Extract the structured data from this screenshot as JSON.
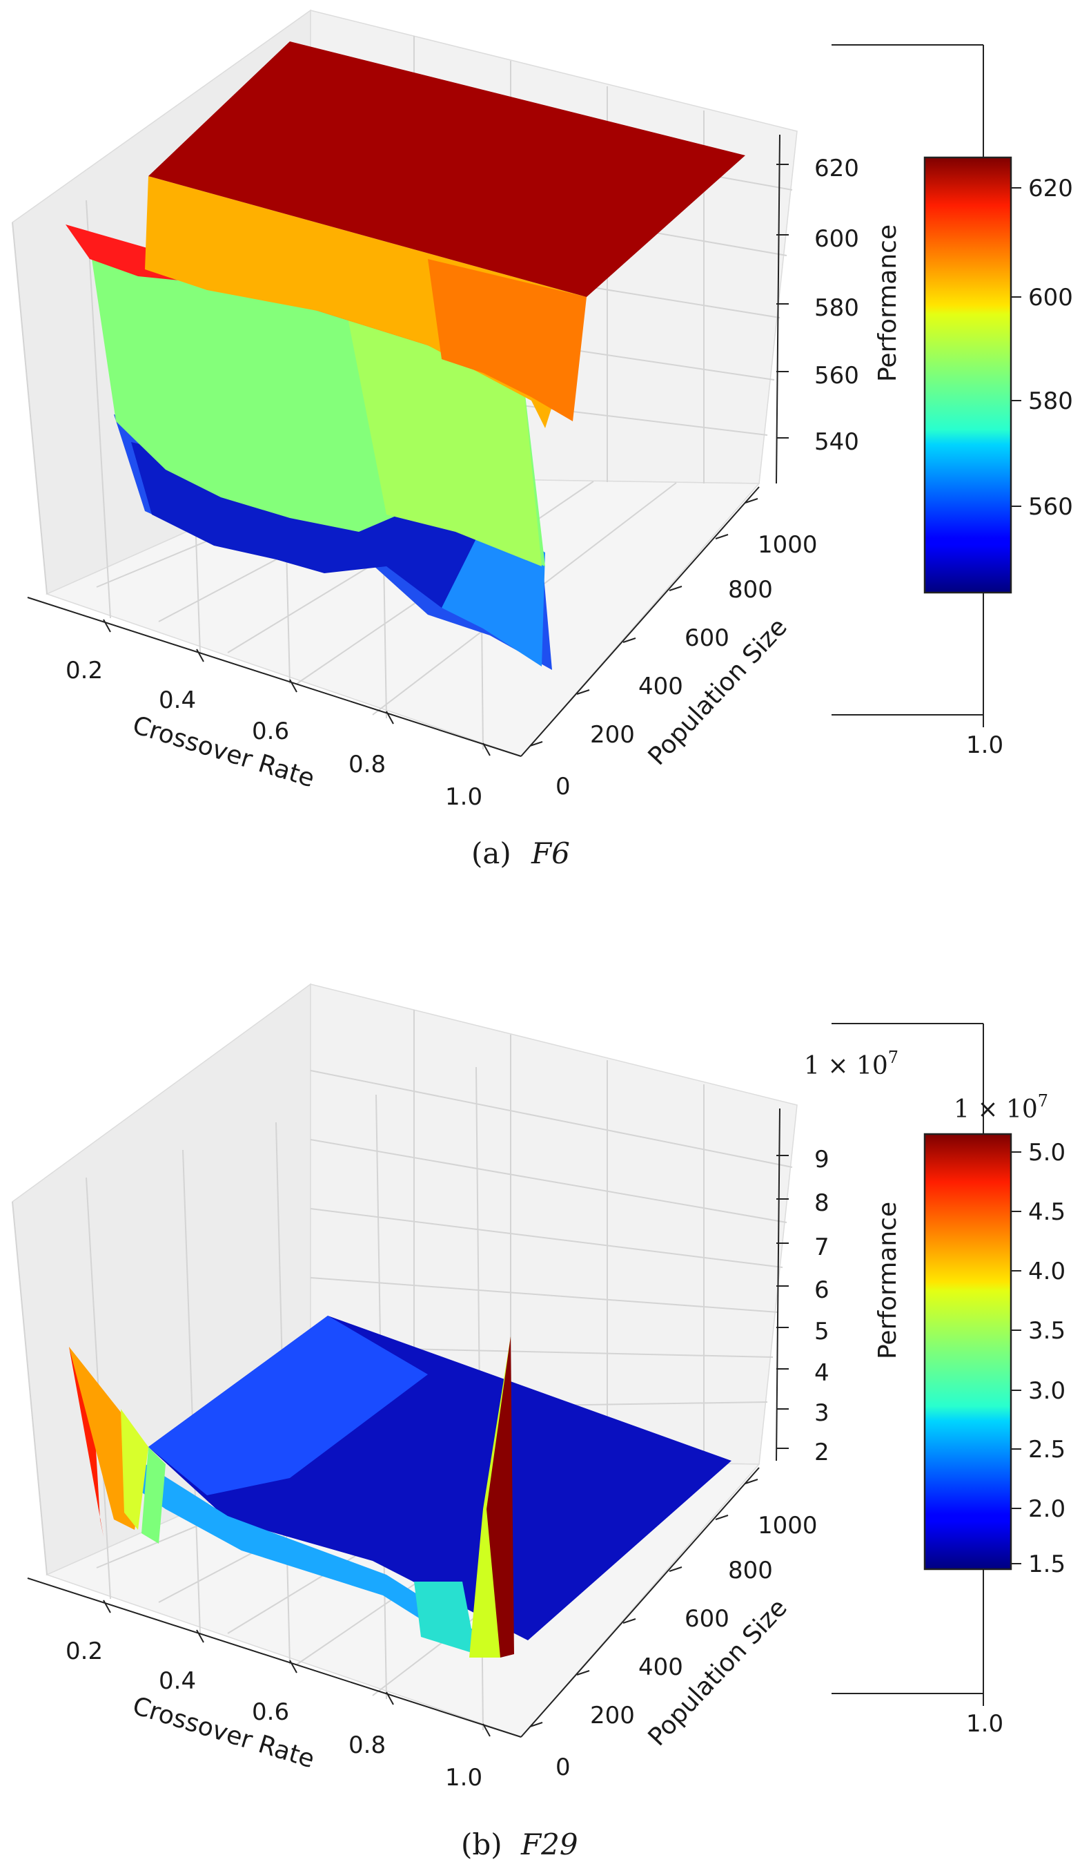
{
  "chart_data": [
    {
      "type": "surface3d",
      "caption_label": "(a)",
      "caption_function": "F6",
      "xlabel": "Crossover Rate",
      "ylabel": "Population Size",
      "zlabel": "Performance",
      "x_ticks": [
        "0.2",
        "0.4",
        "0.6",
        "0.8",
        "1.0"
      ],
      "y_ticks": [
        "0",
        "200",
        "400",
        "600",
        "800",
        "1000"
      ],
      "z_ticks": [
        "540",
        "560",
        "580",
        "600",
        "620"
      ],
      "colorbar": {
        "label": "Performance",
        "ticks": [
          "560",
          "580",
          "600",
          "620"
        ],
        "range": [
          543,
          626
        ],
        "colormap": "jet",
        "outer_axis_tick": "1.0"
      },
      "surface_summary": {
        "high_plateau_value": 625,
        "mid_band_range": [
          575,
          595
        ],
        "low_edge_range": [
          543,
          560
        ]
      }
    },
    {
      "type": "surface3d",
      "caption_label": "(b)",
      "caption_function": "F29",
      "xlabel": "Crossover Rate",
      "ylabel": "Population Size",
      "zlabel": "Performance",
      "z_scale_text": "1 × 10",
      "z_scale_exp": "7",
      "x_ticks": [
        "0.2",
        "0.4",
        "0.6",
        "0.8",
        "1.0"
      ],
      "y_ticks": [
        "0",
        "200",
        "400",
        "600",
        "800",
        "1000"
      ],
      "z_ticks": [
        "2",
        "3",
        "4",
        "5",
        "6",
        "7",
        "8",
        "9"
      ],
      "colorbar": {
        "label": "Performance",
        "scale_text": "1 × 10",
        "scale_exp": "7",
        "ticks": [
          "1.5",
          "2.0",
          "2.5",
          "3.0",
          "3.5",
          "4.0",
          "4.5",
          "5.0"
        ],
        "range": [
          1.45,
          5.15
        ],
        "colormap": "jet",
        "outer_axis_tick": "1.0"
      },
      "surface_summary": {
        "floor_value": 1.5,
        "edge_peak_value": 4.5,
        "spike_value": 5.1
      }
    }
  ]
}
